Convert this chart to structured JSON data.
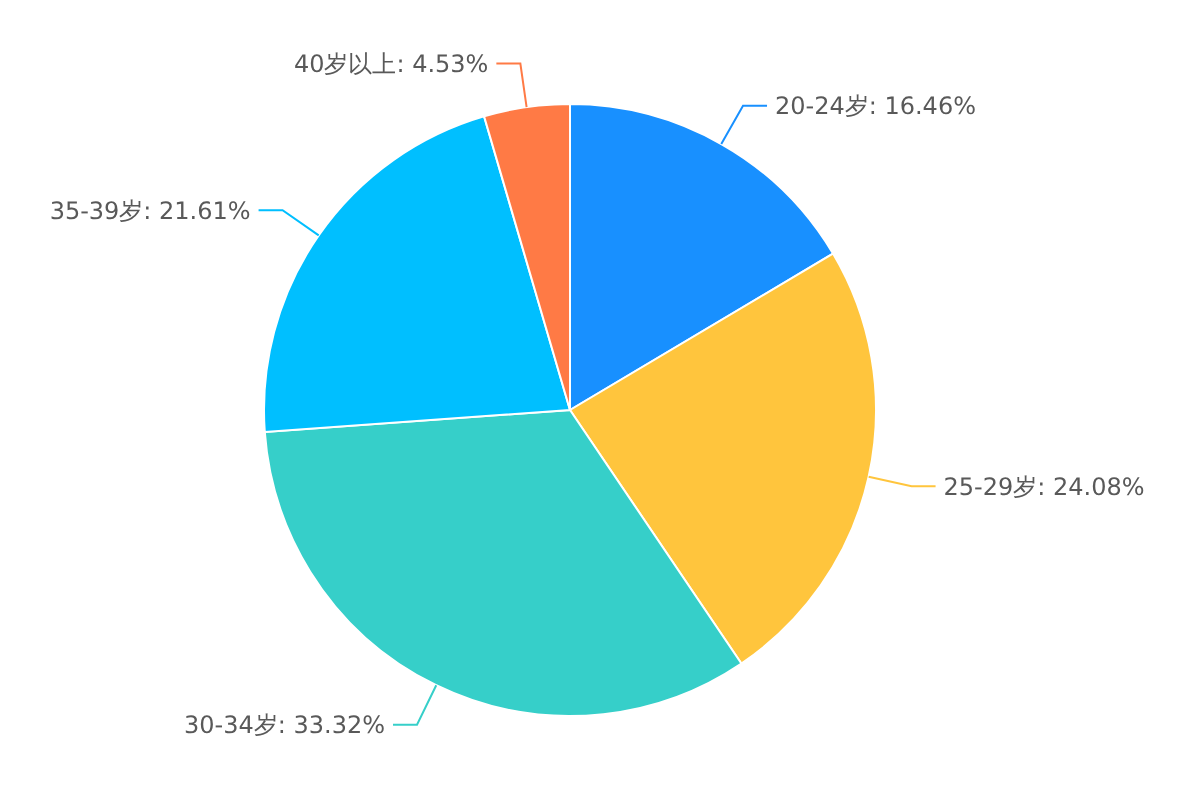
{
  "chart_data": {
    "type": "pie",
    "categories": [
      "20-24岁",
      "25-29岁",
      "30-34岁",
      "35-39岁",
      "40岁以上"
    ],
    "values": [
      16.46,
      24.08,
      33.32,
      21.61,
      4.53
    ],
    "value_labels": [
      "16.46%",
      "24.08%",
      "33.32%",
      "21.61%",
      "4.53%"
    ],
    "colors": [
      "#1890ff",
      "#ffc53d",
      "#36cfc9",
      "#00bfff",
      "#ff7a45"
    ]
  }
}
